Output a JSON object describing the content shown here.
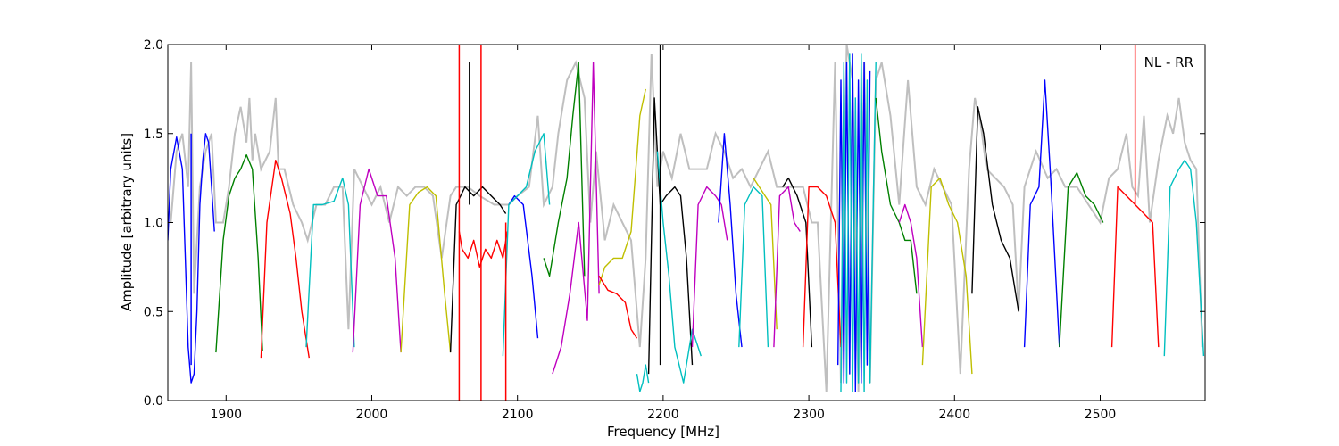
{
  "chart_data": {
    "type": "line",
    "title": "",
    "xlabel": "Frequency [MHz]",
    "ylabel": "Amplitude [arbitrary units]",
    "xlim": [
      1860,
      2572
    ],
    "ylim": [
      0,
      2.0
    ],
    "xticks": [
      1900,
      2000,
      2100,
      2200,
      2300,
      2400,
      2500
    ],
    "xtick_labels": [
      "1900",
      "2000",
      "2100",
      "2200",
      "2300",
      "2400",
      "2500"
    ],
    "yticks": [
      0,
      0.5,
      1.0,
      1.5,
      2.0
    ],
    "ytick_labels": [
      "0.0",
      "0.5",
      "1.0",
      "1.5",
      "2.0"
    ],
    "grid": false,
    "annotation": "NL - RR",
    "background_series": {
      "color": "#bfbfbf",
      "x": [
        1862,
        1866,
        1870,
        1874,
        1876,
        1878,
        1882,
        1886,
        1890,
        1893,
        1898,
        1902,
        1906,
        1910,
        1914,
        1916,
        1918,
        1920,
        1924,
        1930,
        1934,
        1936,
        1940,
        1946,
        1952,
        1956,
        1962,
        1968,
        1974,
        1980,
        1984,
        1988,
        1994,
        2000,
        2006,
        2012,
        2018,
        2024,
        2030,
        2036,
        2042,
        2048,
        2054,
        2058,
        2066,
        2074,
        2084,
        2094,
        2100,
        2108,
        2114,
        2118,
        2124,
        2128,
        2134,
        2140,
        2146,
        2150,
        2154,
        2160,
        2166,
        2172,
        2178,
        2184,
        2188,
        2192,
        2196,
        2200,
        2206,
        2212,
        2218,
        2224,
        2230,
        2236,
        2242,
        2248,
        2254,
        2260,
        2266,
        2272,
        2278,
        2284,
        2290,
        2296,
        2302,
        2306,
        2312,
        2318,
        2322,
        2326,
        2330,
        2334,
        2338,
        2342,
        2346,
        2350,
        2356,
        2362,
        2368,
        2374,
        2380,
        2386,
        2392,
        2398,
        2404,
        2410,
        2414,
        2418,
        2422,
        2428,
        2434,
        2440,
        2444,
        2448,
        2456,
        2464,
        2470,
        2476,
        2484,
        2492,
        2500,
        2506,
        2512,
        2518,
        2522,
        2526,
        2530,
        2534,
        2540,
        2546,
        2550,
        2554,
        2558,
        2562,
        2566,
        2570
      ],
      "y": [
        1.0,
        1.4,
        1.5,
        1.2,
        1.9,
        0.6,
        1.2,
        1.4,
        1.5,
        1.0,
        1.0,
        1.2,
        1.5,
        1.65,
        1.45,
        1.7,
        1.35,
        1.5,
        1.3,
        1.4,
        1.7,
        1.3,
        1.3,
        1.1,
        1.0,
        0.9,
        1.1,
        1.1,
        1.2,
        1.2,
        0.4,
        1.3,
        1.2,
        1.1,
        1.2,
        1.0,
        1.2,
        1.15,
        1.2,
        1.2,
        1.15,
        0.8,
        1.15,
        1.2,
        1.2,
        1.15,
        1.1,
        1.1,
        1.15,
        1.2,
        1.6,
        1.1,
        1.2,
        1.5,
        1.8,
        1.9,
        1.7,
        1.0,
        1.4,
        0.9,
        1.1,
        1.0,
        0.9,
        0.3,
        0.8,
        1.95,
        1.2,
        1.4,
        1.25,
        1.5,
        1.3,
        1.3,
        1.3,
        1.5,
        1.4,
        1.25,
        1.3,
        1.2,
        1.3,
        1.4,
        1.2,
        1.2,
        1.2,
        1.2,
        1.0,
        1.0,
        0.05,
        1.9,
        0.1,
        2.0,
        1.8,
        0.05,
        1.9,
        0.1,
        1.8,
        1.9,
        1.6,
        1.1,
        1.8,
        1.2,
        1.1,
        1.3,
        1.2,
        1.1,
        0.15,
        1.3,
        1.7,
        1.55,
        1.3,
        1.25,
        1.2,
        1.1,
        0.5,
        1.2,
        1.4,
        1.25,
        1.3,
        1.2,
        1.2,
        1.1,
        1.0,
        1.25,
        1.3,
        1.5,
        1.2,
        1.15,
        1.6,
        1.0,
        1.35,
        1.6,
        1.5,
        1.7,
        1.45,
        1.35,
        1.3,
        0.3
      ]
    },
    "series": [
      {
        "color": "#0000ff",
        "x": [
          1860,
          1862,
          1866,
          1870,
          1872,
          1874,
          1876,
          1878,
          1880,
          1882,
          1884,
          1886,
          1888,
          1890,
          1892
        ],
        "y": [
          0.9,
          1.3,
          1.48,
          1.3,
          0.8,
          0.3,
          0.1,
          0.15,
          0.5,
          1.1,
          1.35,
          1.5,
          1.45,
          1.2,
          0.95
        ]
      },
      {
        "color": "#008000",
        "x": [
          1893,
          1898,
          1902,
          1906,
          1910,
          1914,
          1918,
          1922,
          1925
        ],
        "y": [
          0.27,
          0.9,
          1.15,
          1.25,
          1.3,
          1.38,
          1.3,
          0.8,
          0.28
        ]
      },
      {
        "color": "#ff0000",
        "x": [
          1924,
          1928,
          1934,
          1938,
          1944,
          1948,
          1952,
          1957
        ],
        "y": [
          0.24,
          1.0,
          1.35,
          1.25,
          1.05,
          0.8,
          0.5,
          0.24
        ]
      },
      {
        "color": "#00bfbf",
        "x": [
          1955,
          1960,
          1966,
          1974,
          1980,
          1984,
          1988
        ],
        "y": [
          0.3,
          1.1,
          1.1,
          1.12,
          1.25,
          1.1,
          0.3
        ]
      },
      {
        "color": "#bf00bf",
        "x": [
          1987,
          1992,
          1998,
          2004,
          2010,
          2016,
          2020
        ],
        "y": [
          0.27,
          1.1,
          1.3,
          1.15,
          1.15,
          0.8,
          0.27
        ]
      },
      {
        "color": "#bfbf00",
        "x": [
          2020,
          2026,
          2032,
          2038,
          2044,
          2050,
          2054
        ],
        "y": [
          0.27,
          1.1,
          1.17,
          1.2,
          1.15,
          0.6,
          0.27
        ]
      },
      {
        "color": "#000000",
        "x": [
          2054,
          2058,
          2064,
          2070,
          2076,
          2082,
          2088,
          2092
        ],
        "y": [
          0.27,
          1.1,
          1.2,
          1.15,
          1.2,
          1.15,
          1.1,
          1.05
        ]
      },
      {
        "color": "#ff0000",
        "x": [
          2060,
          2062,
          2066,
          2070,
          2074,
          2078,
          2082,
          2086,
          2090,
          2093
        ],
        "y": [
          0.95,
          0.85,
          0.8,
          0.9,
          0.75,
          0.85,
          0.8,
          0.9,
          0.8,
          0.95
        ]
      },
      {
        "color": "#0000ff",
        "x": [
          2094,
          2098,
          2104,
          2110,
          2114
        ],
        "y": [
          1.1,
          1.15,
          1.1,
          0.7,
          0.35
        ]
      },
      {
        "color": "#00bfbf",
        "x": [
          2090,
          2094,
          2100,
          2106,
          2112,
          2118,
          2122
        ],
        "y": [
          0.25,
          1.1,
          1.15,
          1.2,
          1.4,
          1.5,
          1.1
        ]
      },
      {
        "color": "#008000",
        "x": [
          2118,
          2122,
          2128,
          2134,
          2138,
          2142,
          2146
        ],
        "y": [
          0.8,
          0.7,
          1.0,
          1.25,
          1.6,
          1.9,
          0.7
        ]
      },
      {
        "color": "#bf00bf",
        "x": [
          2124,
          2130,
          2136,
          2142,
          2148,
          2152,
          2156
        ],
        "y": [
          0.15,
          0.3,
          0.6,
          1.0,
          0.45,
          1.9,
          0.6
        ]
      },
      {
        "color": "#bfbf00",
        "x": [
          2156,
          2160,
          2166,
          2172,
          2178,
          2184,
          2188
        ],
        "y": [
          0.65,
          0.75,
          0.8,
          0.8,
          0.95,
          1.6,
          1.75
        ]
      },
      {
        "color": "#ff0000",
        "x": [
          2156,
          2162,
          2168,
          2174,
          2178,
          2182
        ],
        "y": [
          0.7,
          0.62,
          0.6,
          0.55,
          0.4,
          0.35
        ]
      },
      {
        "color": "#00bfbf",
        "x": [
          2182,
          2184,
          2186,
          2188,
          2190
        ],
        "y": [
          0.15,
          0.05,
          0.1,
          0.2,
          0.1
        ]
      },
      {
        "color": "#000000",
        "x": [
          2190,
          2194,
          2198,
          2202,
          2208,
          2212,
          2216,
          2220
        ],
        "y": [
          0.15,
          1.7,
          1.1,
          1.15,
          1.2,
          1.15,
          0.8,
          0.2
        ]
      },
      {
        "color": "#00bfbf",
        "x": [
          2196,
          2200,
          2204,
          2208,
          2214,
          2220,
          2226
        ],
        "y": [
          1.4,
          1.0,
          0.7,
          0.3,
          0.1,
          0.4,
          0.25
        ]
      },
      {
        "color": "#bf00bf",
        "x": [
          2220,
          2224,
          2230,
          2236,
          2240,
          2244
        ],
        "y": [
          0.3,
          1.1,
          1.2,
          1.15,
          1.1,
          0.9
        ]
      },
      {
        "color": "#0000ff",
        "x": [
          2238,
          2242,
          2246,
          2250,
          2254
        ],
        "y": [
          1.0,
          1.5,
          1.1,
          0.6,
          0.3
        ]
      },
      {
        "color": "#00bfbf",
        "x": [
          2252,
          2256,
          2262,
          2268,
          2272
        ],
        "y": [
          0.3,
          1.1,
          1.2,
          1.15,
          0.3
        ]
      },
      {
        "color": "#bfbf00",
        "x": [
          2262,
          2266,
          2270,
          2274,
          2278
        ],
        "y": [
          1.25,
          1.2,
          1.15,
          1.1,
          0.4
        ]
      },
      {
        "color": "#bf00bf",
        "x": [
          2276,
          2280,
          2286,
          2290,
          2294
        ],
        "y": [
          0.3,
          1.15,
          1.2,
          1.0,
          0.95
        ]
      },
      {
        "color": "#000000",
        "x": [
          2282,
          2286,
          2292,
          2298,
          2302
        ],
        "y": [
          1.2,
          1.25,
          1.15,
          1.0,
          0.3
        ]
      },
      {
        "color": "#ff0000",
        "x": [
          2296,
          2300,
          2306,
          2312,
          2318,
          2322
        ],
        "y": [
          0.3,
          1.2,
          1.2,
          1.15,
          1.0,
          0.3
        ]
      },
      {
        "color": "#0000ff",
        "x": [
          2320,
          2322,
          2324,
          2326,
          2328,
          2330,
          2332,
          2334,
          2336,
          2338,
          2340,
          2342
        ],
        "y": [
          0.2,
          1.8,
          0.1,
          1.9,
          0.15,
          1.95,
          0.05,
          1.8,
          0.1,
          1.9,
          0.2,
          1.85
        ]
      },
      {
        "color": "#00bfbf",
        "x": [
          2322,
          2324,
          2326,
          2328,
          2330,
          2332,
          2334,
          2336,
          2338,
          2340,
          2342,
          2346
        ],
        "y": [
          0.05,
          1.9,
          0.1,
          1.95,
          0.05,
          1.7,
          0.1,
          1.95,
          0.05,
          1.8,
          0.1,
          1.9
        ]
      },
      {
        "color": "#008000",
        "x": [
          2346,
          2350,
          2356,
          2362,
          2366,
          2370,
          2374
        ],
        "y": [
          1.7,
          1.4,
          1.1,
          1.0,
          0.9,
          0.9,
          0.6
        ]
      },
      {
        "color": "#bf00bf",
        "x": [
          2362,
          2366,
          2370,
          2374,
          2378
        ],
        "y": [
          1.0,
          1.1,
          1.0,
          0.8,
          0.3
        ]
      },
      {
        "color": "#bfbf00",
        "x": [
          2378,
          2384,
          2390,
          2396,
          2402,
          2408,
          2412
        ],
        "y": [
          0.2,
          1.2,
          1.25,
          1.1,
          1.0,
          0.7,
          0.15
        ]
      },
      {
        "color": "#000000",
        "x": [
          2412,
          2416,
          2420,
          2426,
          2432,
          2438,
          2444
        ],
        "y": [
          0.6,
          1.65,
          1.5,
          1.1,
          0.9,
          0.8,
          0.5
        ]
      },
      {
        "color": "#0000ff",
        "x": [
          2448,
          2452,
          2458,
          2462,
          2466,
          2472
        ],
        "y": [
          0.3,
          1.1,
          1.2,
          1.8,
          1.25,
          0.3
        ]
      },
      {
        "color": "#008000",
        "x": [
          2472,
          2478,
          2484,
          2490,
          2496,
          2502
        ],
        "y": [
          0.3,
          1.2,
          1.28,
          1.15,
          1.1,
          1.0
        ]
      },
      {
        "color": "#ff0000",
        "x": [
          2508,
          2512,
          2518,
          2524,
          2530,
          2536,
          2540
        ],
        "y": [
          0.3,
          1.2,
          1.15,
          1.1,
          1.05,
          1.0,
          0.3
        ]
      },
      {
        "color": "#00bfbf",
        "x": [
          2544,
          2548,
          2554,
          2558,
          2562,
          2566,
          2571
        ],
        "y": [
          0.25,
          1.2,
          1.3,
          1.35,
          1.3,
          1.0,
          0.25
        ]
      }
    ],
    "spikes": [
      {
        "color": "#ff0000",
        "x": 2060,
        "y0": 0.0,
        "y1": 2.0
      },
      {
        "color": "#ff0000",
        "x": 2075,
        "y0": 0.0,
        "y1": 2.0
      },
      {
        "color": "#ff0000",
        "x": 2092,
        "y0": 0.0,
        "y1": 1.0
      },
      {
        "color": "#000000",
        "x": 2067,
        "y0": 1.1,
        "y1": 1.9
      },
      {
        "color": "#0000ff",
        "x": 1876,
        "y0": 0.2,
        "y1": 1.5
      },
      {
        "color": "#ff0000",
        "x": 2524,
        "y0": 1.1,
        "y1": 2.0
      },
      {
        "color": "#000000",
        "x": 2198,
        "y0": 0.2,
        "y1": 2.0
      }
    ]
  }
}
